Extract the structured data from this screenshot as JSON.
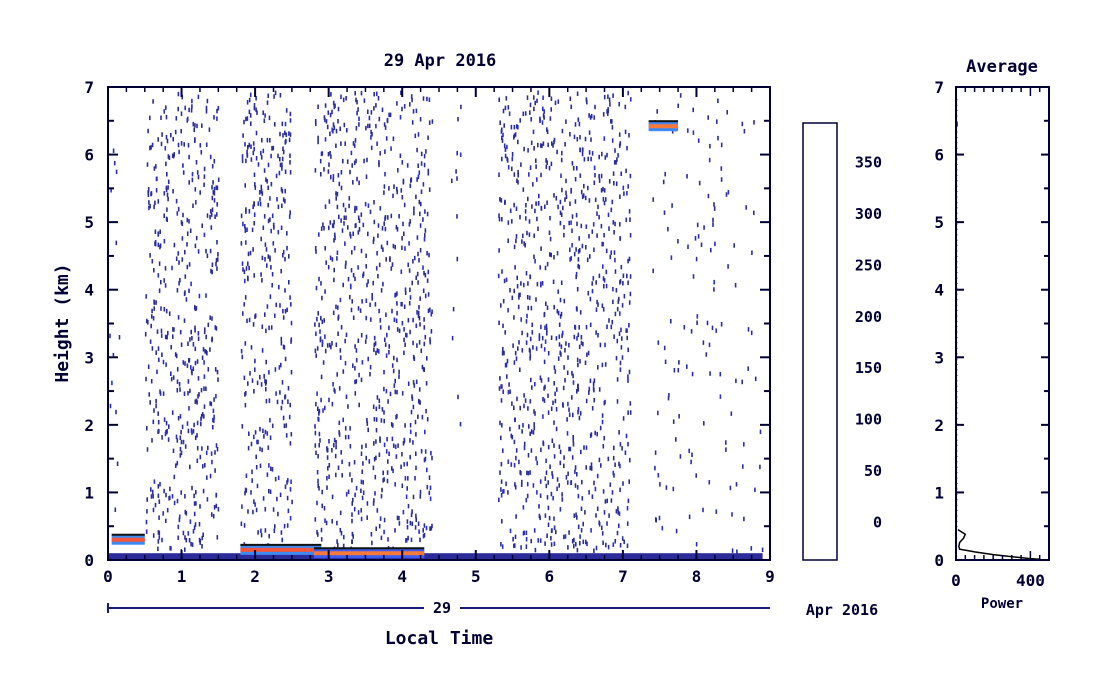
{
  "chart_data": [
    {
      "type": "heatmap",
      "title": "29 Apr 2016",
      "xlabel": "Local Time",
      "ylabel": "Height (km)",
      "xlim": [
        0,
        9
      ],
      "ylim": [
        0,
        7
      ],
      "x_ticks": [
        0,
        1,
        2,
        3,
        4,
        5,
        6,
        7,
        8,
        9
      ],
      "y_ticks": [
        0,
        1,
        2,
        3,
        4,
        5,
        6,
        7
      ],
      "date_axis": {
        "day_label": "29",
        "month_year_label": "Apr 2016"
      },
      "colorbar": {
        "levels": [
          0,
          25,
          50,
          75,
          100,
          125,
          150,
          175,
          200,
          225,
          250,
          275,
          300,
          325,
          350,
          375
        ],
        "tick_labels": [
          "0",
          "50",
          "100",
          "150",
          "200",
          "250",
          "300",
          "350"
        ],
        "tick_values": [
          0,
          50,
          100,
          150,
          200,
          250,
          300,
          350
        ],
        "colors": [
          "#2b2b9a",
          "#2d2dc8",
          "#2f3de6",
          "#3a5cf0",
          "#3f8af2",
          "#3fb2f2",
          "#25e8f5",
          "#58f5c0",
          "#8af58a",
          "#bef55a",
          "#f5f53a",
          "#f5d23a",
          "#f5a83a",
          "#f57a3a",
          "#f5553a",
          "#f53030"
        ]
      },
      "data_segments": [
        {
          "x_start": 0.0,
          "x_end": 0.15,
          "density": "sparse"
        },
        {
          "x_start": 0.5,
          "x_end": 1.5,
          "density": "dense"
        },
        {
          "x_start": 1.8,
          "x_end": 2.5,
          "density": "dense"
        },
        {
          "x_start": 2.8,
          "x_end": 4.4,
          "density": "dense"
        },
        {
          "x_start": 4.65,
          "x_end": 4.8,
          "density": "sparse"
        },
        {
          "x_start": 5.3,
          "x_end": 7.1,
          "density": "dense"
        },
        {
          "x_start": 7.4,
          "x_end": 8.9,
          "density": "sparse"
        }
      ],
      "surface_layer": {
        "height_km": 0.1,
        "value": 10
      },
      "features": [
        {
          "x_start": 0.05,
          "x_end": 0.5,
          "height_km": 0.3,
          "value": 370
        },
        {
          "x_start": 1.8,
          "x_end": 2.9,
          "height_km": 0.15,
          "value": 360
        },
        {
          "x_start": 2.8,
          "x_end": 4.3,
          "height_km": 0.1,
          "value": 330
        },
        {
          "x_start": 7.35,
          "x_end": 7.75,
          "height_km": 6.42,
          "value": 340
        }
      ]
    },
    {
      "type": "line",
      "title": "Average",
      "xlabel": "Power",
      "ylabel": "",
      "xlim": [
        0,
        500
      ],
      "ylim": [
        0,
        7
      ],
      "x_ticks": [
        0,
        400
      ],
      "y_ticks": [
        0,
        1,
        2,
        3,
        4,
        5,
        6,
        7
      ],
      "x": [
        10,
        50,
        40,
        20,
        15,
        20,
        60,
        100,
        150,
        200,
        260,
        330,
        400,
        450
      ],
      "y": [
        0.45,
        0.38,
        0.32,
        0.26,
        0.2,
        0.16,
        0.14,
        0.12,
        0.1,
        0.08,
        0.06,
        0.04,
        0.02,
        0.01
      ]
    }
  ]
}
